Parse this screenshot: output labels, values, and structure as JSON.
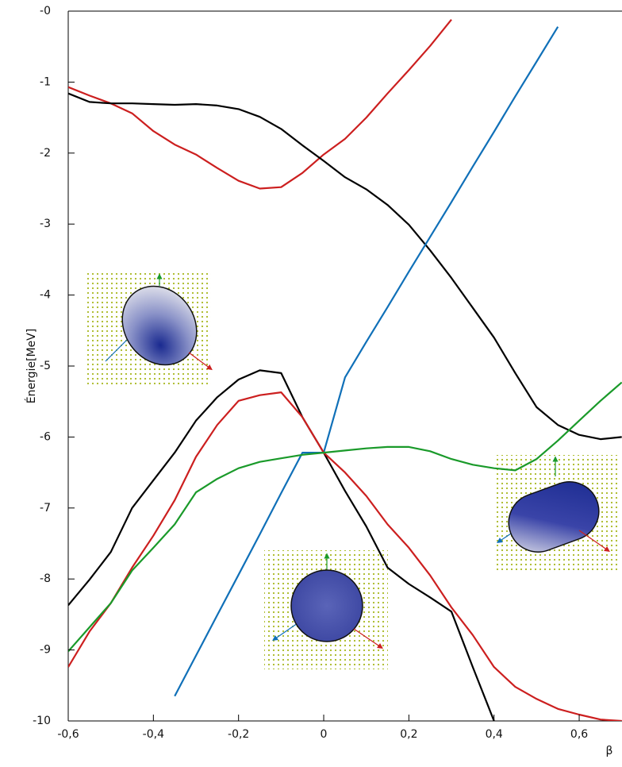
{
  "chart_data": {
    "type": "line",
    "xlabel": "β",
    "ylabel": "Énergie[MeV]",
    "x": [
      -0.6,
      -0.55,
      -0.5,
      -0.45,
      -0.4,
      -0.35,
      -0.3,
      -0.25,
      -0.2,
      -0.15,
      -0.1,
      -0.05,
      0,
      0.05,
      0.1,
      0.15,
      0.2,
      0.25,
      0.3,
      0.35,
      0.4,
      0.45,
      0.5,
      0.55,
      0.6,
      0.65,
      0.7
    ],
    "series": [
      {
        "color": "#cc1f1f",
        "values": [
          -1.07,
          -1.19,
          -1.3,
          -1.44,
          -1.69,
          -1.88,
          -2.02,
          -2.21,
          -2.39,
          -2.5,
          -2.48,
          -2.28,
          -2.02,
          -1.8,
          -1.5,
          -1.16,
          -0.83,
          -0.49,
          -0.12,
          null,
          null,
          null,
          null,
          null,
          null,
          null,
          null
        ]
      },
      {
        "color": "#000000",
        "values": [
          -1.16,
          -1.28,
          -1.3,
          -1.3,
          -1.31,
          -1.32,
          -1.31,
          -1.33,
          -1.38,
          -1.49,
          -1.66,
          -1.89,
          -2.11,
          -2.34,
          -2.51,
          -2.73,
          -3.01,
          -3.37,
          -3.76,
          -4.18,
          -4.6,
          -5.1,
          -5.58,
          -5.83,
          -5.97,
          -6.03,
          -6.0
        ]
      },
      {
        "color": "#1070b8",
        "values": [
          null,
          null,
          null,
          null,
          null,
          -9.65,
          -9.08,
          -8.51,
          -7.94,
          -7.37,
          -6.79,
          -6.22,
          -6.22,
          -5.16,
          -4.66,
          -4.17,
          -3.67,
          -3.18,
          -2.69,
          -2.19,
          -1.7,
          -1.2,
          -0.71,
          -0.22,
          null,
          null,
          null
        ]
      },
      {
        "color": "#000000",
        "values": [
          -8.37,
          -8.01,
          -7.62,
          -7.0,
          -6.61,
          -6.22,
          -5.77,
          -5.44,
          -5.19,
          -5.06,
          -5.1,
          -5.72,
          -6.22,
          -6.76,
          -7.26,
          -7.84,
          -8.07,
          -8.26,
          -8.46,
          -9.24,
          -10,
          null,
          null,
          null,
          null,
          null,
          null
        ]
      },
      {
        "color": "#cc1f1f",
        "values": [
          -9.24,
          -8.74,
          -8.34,
          -7.84,
          -7.39,
          -6.89,
          -6.28,
          -5.83,
          -5.49,
          -5.41,
          -5.37,
          -5.72,
          -6.22,
          -6.5,
          -6.83,
          -7.23,
          -7.56,
          -7.95,
          -8.4,
          -8.79,
          -9.24,
          -9.52,
          -9.69,
          -9.83,
          -9.91,
          -9.98,
          -10
        ]
      },
      {
        "color": "#1a9a2a",
        "values": [
          -9.02,
          -8.68,
          -8.34,
          -7.88,
          -7.56,
          -7.23,
          -6.78,
          -6.59,
          -6.44,
          -6.35,
          -6.3,
          -6.25,
          -6.22,
          -6.19,
          -6.16,
          -6.14,
          -6.14,
          -6.2,
          -6.31,
          -6.39,
          -6.44,
          -6.47,
          -6.31,
          -6.05,
          -5.77,
          -5.49,
          -5.23
        ]
      }
    ],
    "xlim": [
      -0.6,
      0.7
    ],
    "ylim": [
      -10,
      0
    ],
    "xticks": [
      {
        "value": -0.6,
        "label": "-0,6"
      },
      {
        "value": -0.4,
        "label": "-0,4"
      },
      {
        "value": -0.2,
        "label": "-0,2"
      },
      0,
      {
        "value": 0.2,
        "label": "0,2"
      },
      {
        "value": 0.4,
        "label": "0,4"
      },
      {
        "value": 0.6,
        "label": "0,6"
      }
    ],
    "yticks": [
      {
        "value": 0,
        "label": "-0"
      },
      -1,
      -2,
      -3,
      -4,
      -5,
      -6,
      -7,
      -8,
      -9,
      -10
    ]
  }
}
